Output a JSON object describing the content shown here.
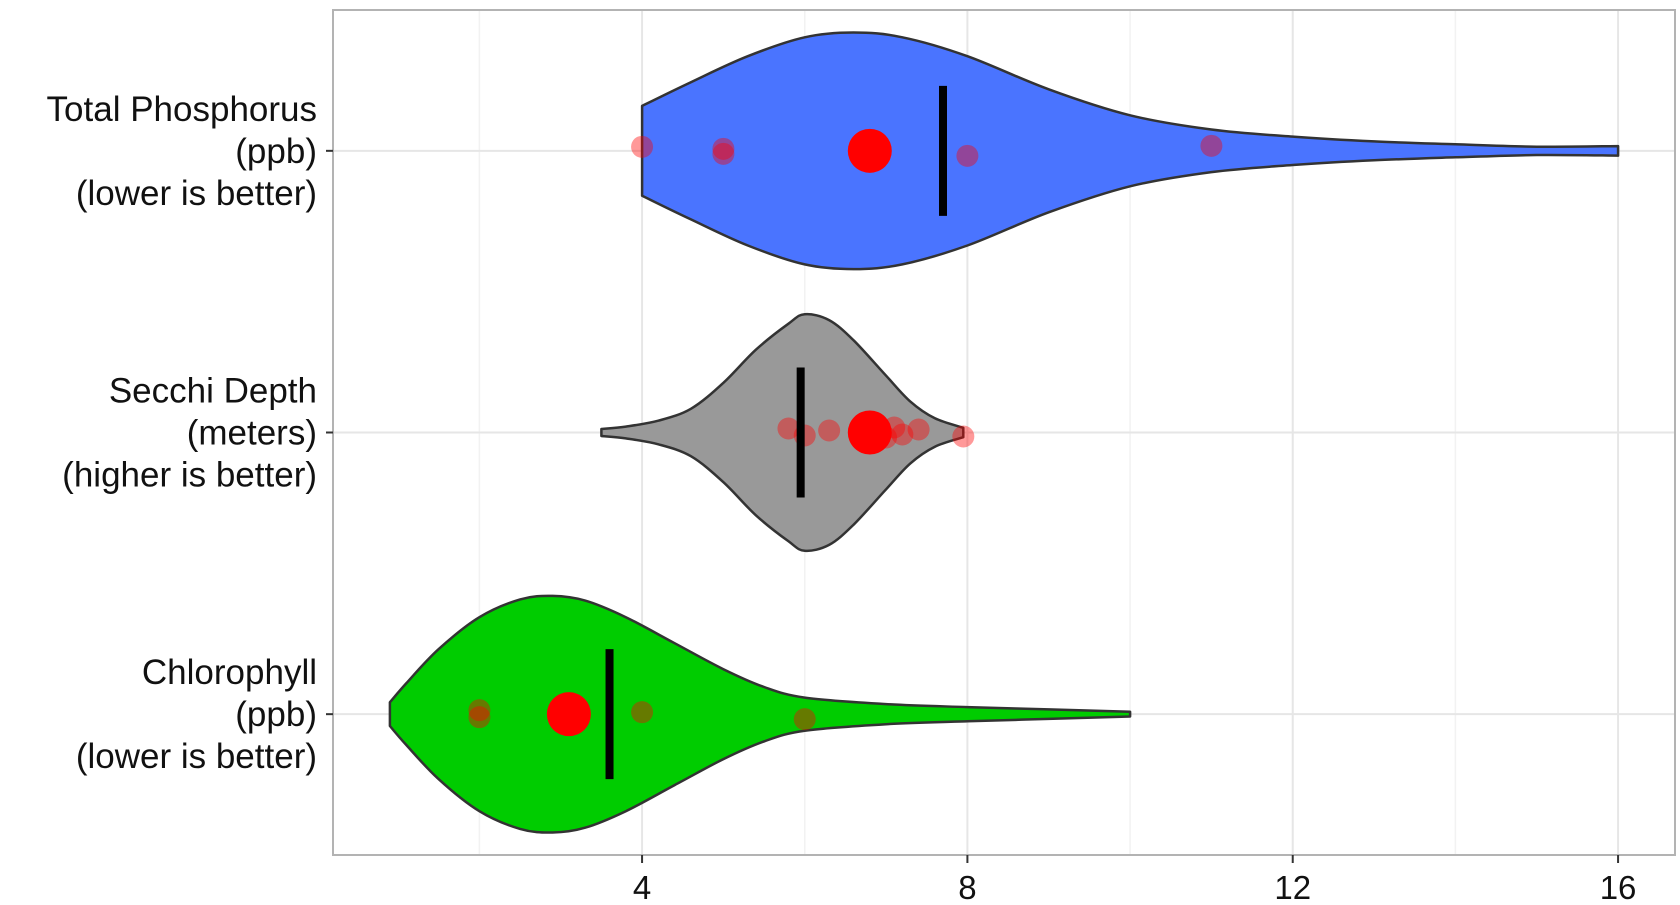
{
  "chart_data": {
    "type": "violin",
    "orientation": "horizontal",
    "title": "",
    "xlabel": "",
    "ylabel": "",
    "xlim": [
      0.2,
      16.7
    ],
    "x_ticks": [
      4,
      8,
      12,
      16
    ],
    "x_tick_labels": [
      "4",
      "8",
      "12",
      "16"
    ],
    "grid": true,
    "legend": "none",
    "series": [
      {
        "label_lines": [
          "Total Phosphorus",
          "(ppb)",
          "(lower is better)"
        ],
        "fill": "#4a74ff",
        "min": 4,
        "max": 16,
        "mode": 6.6,
        "median_line": 7.7,
        "highlight_point": 6.8,
        "points": [
          4,
          5,
          5,
          8,
          11
        ],
        "density_profile": [
          [
            4,
            0.38
          ],
          [
            4.6,
            0.58
          ],
          [
            5.3,
            0.8
          ],
          [
            6.0,
            0.96
          ],
          [
            6.6,
            1.0
          ],
          [
            7.2,
            0.96
          ],
          [
            8.0,
            0.8
          ],
          [
            9.0,
            0.52
          ],
          [
            10.0,
            0.3
          ],
          [
            11.0,
            0.18
          ],
          [
            12.0,
            0.12
          ],
          [
            13.0,
            0.08
          ],
          [
            14.0,
            0.055
          ],
          [
            15.0,
            0.035
          ],
          [
            16.0,
            0.04
          ]
        ]
      },
      {
        "label_lines": [
          "Secchi Depth",
          "(meters)",
          "(higher is better)"
        ],
        "fill": "#999999",
        "min": 3.5,
        "max": 7.95,
        "mode": 6.0,
        "median_line": 5.95,
        "highlight_point": 6.8,
        "points": [
          5.8,
          6.0,
          6.3,
          7.0,
          7.1,
          7.2,
          7.4,
          7.95
        ],
        "density_profile": [
          [
            3.5,
            0.03
          ],
          [
            3.8,
            0.05
          ],
          [
            4.2,
            0.1
          ],
          [
            4.6,
            0.2
          ],
          [
            5.0,
            0.42
          ],
          [
            5.4,
            0.7
          ],
          [
            5.8,
            0.92
          ],
          [
            6.0,
            1.0
          ],
          [
            6.3,
            0.95
          ],
          [
            6.6,
            0.78
          ],
          [
            7.0,
            0.48
          ],
          [
            7.3,
            0.26
          ],
          [
            7.6,
            0.12
          ],
          [
            7.95,
            0.04
          ]
        ]
      },
      {
        "label_lines": [
          "Chlorophyll",
          "(ppb)",
          "(lower is better)"
        ],
        "fill": "#00cc00",
        "min": 0.9,
        "max": 10.0,
        "mode": 2.9,
        "median_line": 3.6,
        "highlight_point": 3.1,
        "points": [
          2.0,
          2.0,
          4.0,
          6.0
        ],
        "density_profile": [
          [
            0.9,
            0.1
          ],
          [
            1.1,
            0.26
          ],
          [
            1.5,
            0.55
          ],
          [
            2.0,
            0.82
          ],
          [
            2.5,
            0.97
          ],
          [
            2.9,
            1.0
          ],
          [
            3.3,
            0.96
          ],
          [
            3.8,
            0.82
          ],
          [
            4.4,
            0.6
          ],
          [
            5.0,
            0.38
          ],
          [
            5.5,
            0.23
          ],
          [
            6.0,
            0.14
          ],
          [
            7.0,
            0.085
          ],
          [
            8.0,
            0.06
          ],
          [
            9.0,
            0.04
          ],
          [
            10.0,
            0.02
          ]
        ]
      }
    ]
  }
}
